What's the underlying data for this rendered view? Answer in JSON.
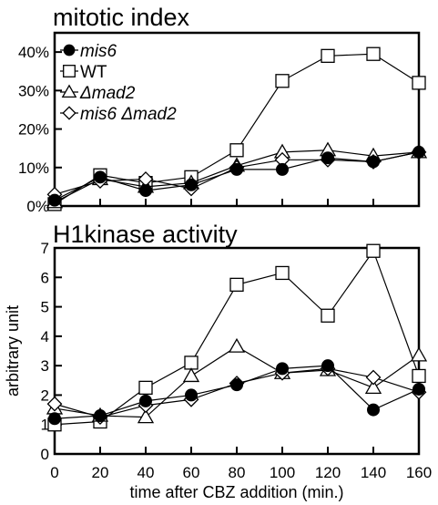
{
  "chart_data": [
    {
      "type": "line",
      "title": "mitotic index",
      "xlabel": "",
      "ylabel": "",
      "x": [
        0,
        20,
        40,
        60,
        80,
        100,
        120,
        140,
        160
      ],
      "xlim": [
        0,
        160
      ],
      "ylim": [
        0,
        45
      ],
      "yticks": [
        0,
        10,
        20,
        30,
        40
      ],
      "ytick_labels": [
        "0%",
        "10%",
        "20%",
        "30%",
        "40%"
      ],
      "grid": false,
      "legend_position": "top-left",
      "series": [
        {
          "name": "mis6",
          "marker": "filled-circle",
          "values": [
            1.5,
            7.5,
            4,
            5.5,
            9.5,
            9.5,
            12.5,
            11.5,
            14
          ]
        },
        {
          "name": "WT",
          "marker": "open-square",
          "values": [
            0.5,
            8,
            6,
            7.5,
            14.5,
            32.5,
            39,
            39.5,
            32
          ]
        },
        {
          "name": "Δmad2",
          "marker": "open-triangle",
          "values": [
            1,
            7,
            5,
            6,
            10.5,
            14,
            14.5,
            13,
            14
          ]
        },
        {
          "name": "mis6 Δmad2",
          "marker": "open-diamond",
          "values": [
            3,
            6.5,
            7,
            4.5,
            10,
            12,
            12,
            11.5,
            14
          ]
        }
      ]
    },
    {
      "type": "line",
      "title": "H1kinase activity",
      "xlabel": "time after CBZ addition (min.)",
      "ylabel": "arbitrary unit",
      "x": [
        0,
        20,
        40,
        60,
        80,
        100,
        120,
        140,
        160
      ],
      "xlim": [
        0,
        160
      ],
      "ylim": [
        0,
        7
      ],
      "xticks": [
        0,
        20,
        40,
        60,
        80,
        100,
        120,
        140,
        160
      ],
      "yticks": [
        0,
        1,
        2,
        3,
        4,
        5,
        6,
        7
      ],
      "grid": false,
      "series": [
        {
          "name": "mis6",
          "marker": "filled-circle",
          "values": [
            1.2,
            1.3,
            1.8,
            2.0,
            2.35,
            2.9,
            3.0,
            1.5,
            2.2
          ]
        },
        {
          "name": "WT",
          "marker": "open-square",
          "values": [
            1.0,
            1.1,
            2.25,
            3.1,
            5.75,
            6.15,
            4.7,
            6.9,
            2.65
          ]
        },
        {
          "name": "Δmad2",
          "marker": "open-triangle",
          "values": [
            1.55,
            1.3,
            1.25,
            2.65,
            3.65,
            2.75,
            2.85,
            2.25,
            3.35
          ]
        },
        {
          "name": "mis6 Δmad2",
          "marker": "open-diamond",
          "values": [
            1.7,
            1.25,
            1.65,
            1.85,
            2.4,
            2.75,
            2.9,
            2.6,
            2.1
          ]
        }
      ]
    }
  ]
}
